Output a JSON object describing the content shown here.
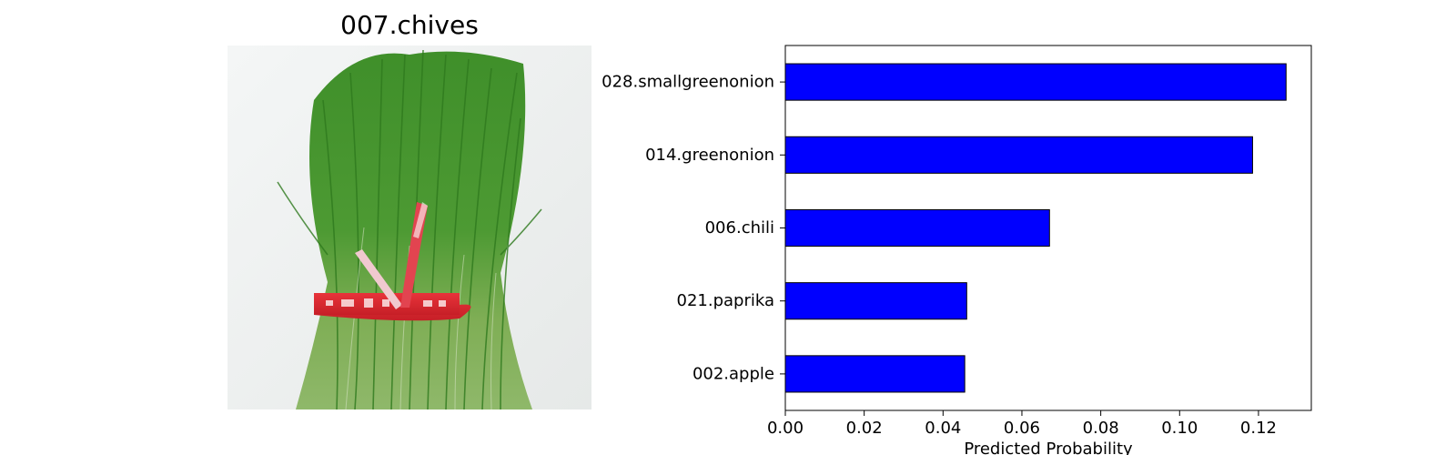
{
  "image_panel": {
    "title": "007.chives"
  },
  "chart_data": {
    "type": "bar",
    "orientation": "horizontal",
    "categories": [
      "028.smallgreenonion",
      "014.greenonion",
      "006.chili",
      "021.paprika",
      "002.apple"
    ],
    "values": [
      0.127,
      0.1185,
      0.067,
      0.046,
      0.0455
    ],
    "xlabel": "Predicted Probability",
    "ylabel": "",
    "xlim": [
      0.0,
      0.1334
    ],
    "xticks": [
      "0.00",
      "0.02",
      "0.04",
      "0.06",
      "0.08",
      "0.10",
      "0.12"
    ],
    "bar_color": "#0000ff",
    "bar_edge_color": "#000000",
    "grid": false,
    "legend": "none"
  }
}
